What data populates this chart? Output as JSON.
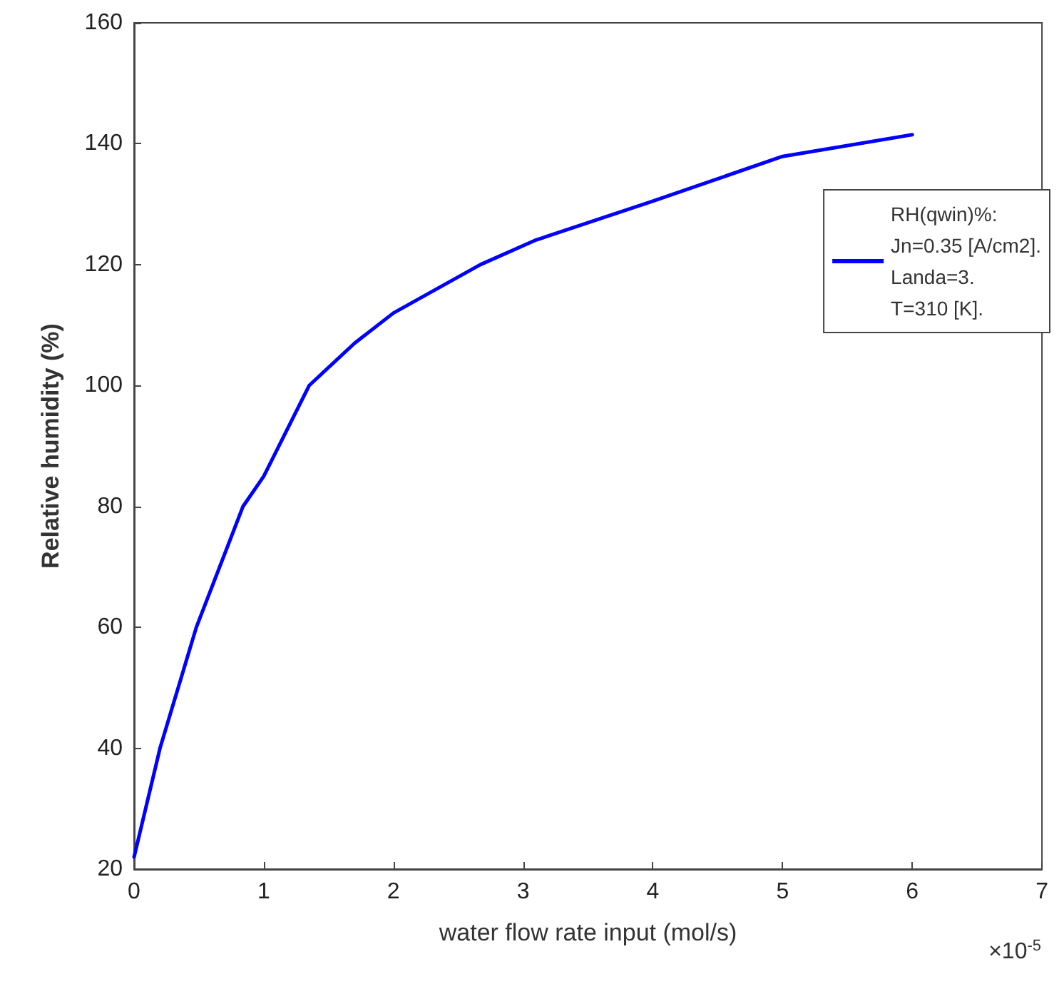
{
  "chart_data": {
    "type": "line",
    "xlabel": "water flow rate input (mol/s)",
    "ylabel": "Relative humidity (%)",
    "xlim": [
      0,
      7
    ],
    "xticks": [
      0,
      1,
      2,
      3,
      4,
      5,
      6,
      7
    ],
    "ylim": [
      20,
      160
    ],
    "yticks": [
      20,
      40,
      60,
      80,
      100,
      120,
      140,
      160
    ],
    "grid": false,
    "legend": "right",
    "marker": "none",
    "line_style": "solid",
    "annotations": [
      "×10$^{-5}$"
    ],
    "series": [
      {
        "name": "RH(qwin)%:\nJn=0.35 [A/cm2].\nLanda=3.\nT=310 [K].",
        "color": "#0000ff",
        "x": [
          0,
          0.1,
          0.2,
          0.48,
          0.84,
          1,
          1.35,
          1.7,
          2,
          2.67,
          3.09,
          4,
          5,
          6
        ],
        "values": [
          22,
          31,
          40,
          60,
          80,
          85,
          100,
          107,
          112,
          120,
          124,
          130.5,
          137.9,
          141.5
        ]
      }
    ]
  }
}
